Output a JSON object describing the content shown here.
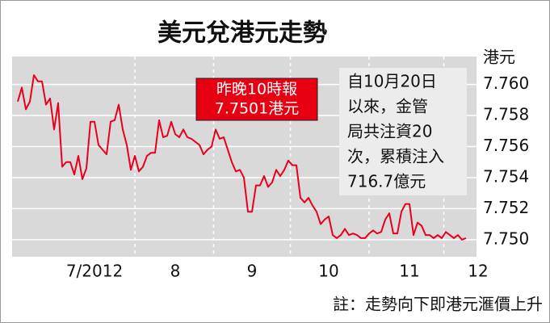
{
  "chart_data": {
    "type": "line",
    "title": "美元兌港元走勢",
    "y_label": "港元",
    "categories": [
      null,
      null,
      null,
      null,
      null,
      null,
      null,
      null,
      null,
      null,
      null,
      null,
      null,
      null,
      null,
      null,
      null,
      null,
      null,
      "7/2012",
      null,
      null,
      null,
      null,
      null,
      null,
      null,
      null,
      null,
      null,
      null,
      null,
      null,
      null,
      null,
      null,
      null,
      null,
      null,
      "8",
      null,
      null,
      null,
      null,
      null,
      null,
      null,
      null,
      null,
      null,
      null,
      null,
      null,
      null,
      null,
      null,
      null,
      null,
      "9",
      null,
      null,
      null,
      null,
      null,
      null,
      null,
      null,
      null,
      null,
      null,
      null,
      null,
      null,
      null,
      null,
      null,
      null,
      "10",
      null,
      null,
      null,
      null,
      null,
      null,
      null,
      null,
      null,
      null,
      null,
      null,
      null,
      null,
      null,
      null,
      null,
      null,
      null,
      "11",
      null,
      null,
      null,
      null,
      null,
      null,
      null,
      null,
      null,
      null,
      null,
      null,
      null,
      null,
      null,
      null,
      "12"
    ],
    "series": [
      {
        "color": "#e8001c",
        "values": [
          7.7589,
          7.7598,
          7.7584,
          7.7589,
          7.7606,
          7.7602,
          7.7602,
          7.7587,
          7.7591,
          7.7571,
          7.7588,
          7.7547,
          7.755,
          7.755,
          7.7542,
          7.7554,
          7.7539,
          7.7546,
          7.7576,
          7.7576,
          7.7561,
          7.7558,
          7.7555,
          7.7576,
          7.7577,
          7.7587,
          7.7571,
          7.7561,
          7.7545,
          7.7554,
          7.7544,
          7.7547,
          7.7554,
          7.7556,
          7.7556,
          7.7577,
          7.7566,
          7.7567,
          7.7576,
          7.7568,
          7.7566,
          7.7571,
          7.7566,
          7.7565,
          7.7563,
          7.7561,
          7.7555,
          7.7558,
          7.756,
          7.7571,
          7.7565,
          7.7566,
          7.7558,
          7.755,
          7.7544,
          7.7545,
          7.754,
          7.7518,
          7.7518,
          7.7535,
          7.7535,
          7.7541,
          7.7534,
          7.7537,
          7.7545,
          7.7541,
          7.7545,
          7.7551,
          7.7548,
          7.7548,
          7.7527,
          7.7524,
          7.7527,
          7.7522,
          7.7518,
          7.751,
          7.7513,
          7.7515,
          7.7503,
          7.7501,
          7.7503,
          7.7507,
          7.7503,
          7.7504,
          7.7503,
          7.7501,
          7.7501,
          7.7504,
          7.7506,
          7.7504,
          7.7505,
          7.7513,
          7.7517,
          7.7504,
          7.7504,
          7.7518,
          7.7523,
          7.7523,
          7.7503,
          7.7511,
          7.7509,
          7.7503,
          7.7503,
          7.7501,
          7.7503,
          7.7501,
          7.7505,
          7.7503,
          7.7501,
          7.7503,
          7.75,
          7.7501,
          null,
          null,
          null
        ]
      }
    ],
    "ylim": [
      7.7489,
      7.7618
    ],
    "yticks": [
      {
        "value": 7.75,
        "label": "7.750"
      },
      7.752,
      7.754,
      7.756,
      7.758,
      {
        "value": 7.76,
        "label": "7.760"
      }
    ],
    "grid": true,
    "callout": [
      "昨晚10時報",
      "7.7501港元"
    ],
    "note_box": [
      "自10月20日",
      "以來，金管",
      "局共注資20",
      "次，累積注入",
      "716.7億元"
    ],
    "footnote": "註：走勢向下即港元滙價上升"
  }
}
